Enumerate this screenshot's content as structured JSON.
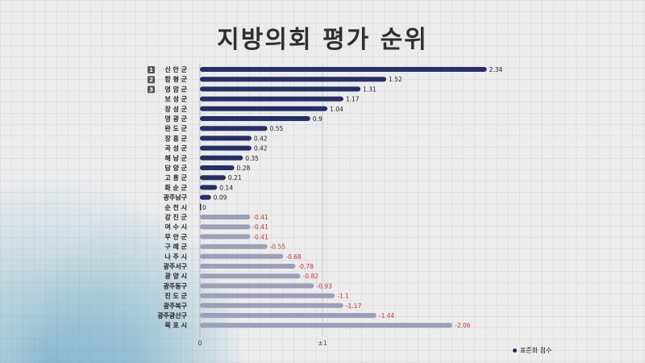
{
  "title": "지방의회 평가 순위",
  "legend": {
    "label": "표준화 점수"
  },
  "colors": {
    "positive": "#252f66",
    "negative": "#9d9fb8",
    "positive_label": "#222222",
    "negative_label": "#d0332b",
    "rank_badge": "#555555"
  },
  "chart_data": {
    "type": "bar",
    "orientation": "horizontal",
    "title": "지방의회 평가 순위",
    "ranks": [
      "1",
      "2",
      "3"
    ],
    "categories": [
      "신 안 군",
      "함 평 군",
      "영 암 군",
      "보 성 군",
      "장 성 군",
      "영 광 군",
      "완 도 군",
      "장 흥 군",
      "곡 성 군",
      "해 남 군",
      "담 양 군",
      "고 흥 군",
      "화 순 군",
      "광주남구",
      "순 천 시",
      "강 진 군",
      "여 수 시",
      "무 안 군",
      "구 례 군",
      "나 주 시",
      "광주서구",
      "광 양 시",
      "광주동구",
      "진 도 군",
      "광주북구",
      "광주광산구",
      "목 포 시"
    ],
    "values": [
      2.34,
      1.52,
      1.31,
      1.17,
      1.04,
      0.9,
      0.55,
      0.42,
      0.42,
      0.35,
      0.28,
      0.21,
      0.14,
      0.09,
      0,
      -0.41,
      -0.41,
      -0.41,
      -0.55,
      -0.68,
      -0.78,
      -0.82,
      -0.93,
      -1.1,
      -1.17,
      -1.44,
      -2.06
    ],
    "value_labels": [
      "2.34",
      "1.52",
      "1.31",
      "1.17",
      "1.04",
      "0.9",
      "0.55",
      "0.42",
      "0.42",
      "0.35",
      "0.28",
      "0.21",
      "0.14",
      "0.09",
      "0",
      "-0.41",
      "-0.41",
      "-0.41",
      "-0.55",
      "-0.68",
      "-0.78",
      "-0.82",
      "-0.93",
      "-1.1",
      "-1.17",
      "-1.44",
      "-2.06"
    ],
    "bar_length": "absolute value",
    "x_ticks": [
      "0",
      "±1"
    ],
    "xlim": [
      0,
      2.34
    ],
    "grid": true,
    "legend_position": "bottom-right",
    "series": [
      {
        "name": "표준화 점수"
      }
    ]
  }
}
